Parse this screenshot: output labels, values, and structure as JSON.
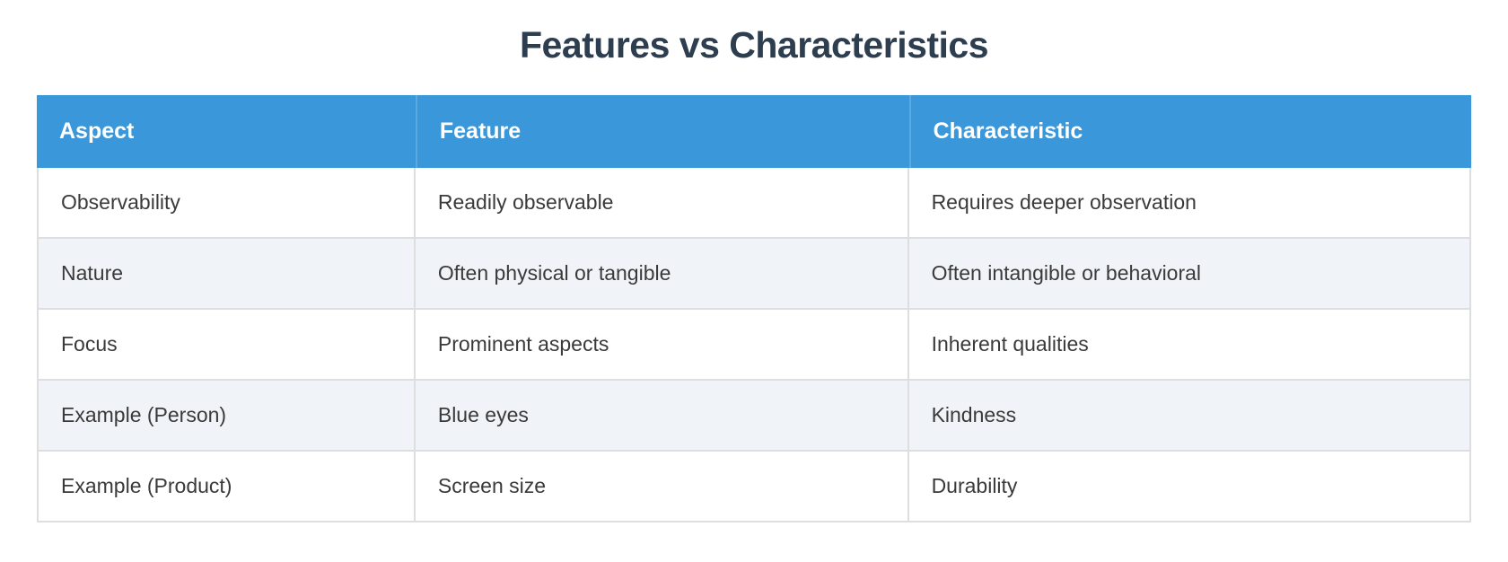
{
  "page": {
    "title": "Features vs Characteristics"
  },
  "table": {
    "headers": [
      "Aspect",
      "Feature",
      "Characteristic"
    ],
    "rows": [
      {
        "cells": [
          "Observability",
          "Readily observable",
          "Requires deeper observation"
        ]
      },
      {
        "cells": [
          "Nature",
          "Often physical or tangible",
          "Often intangible or behavioral"
        ]
      },
      {
        "cells": [
          "Focus",
          "Prominent aspects",
          "Inherent qualities"
        ]
      },
      {
        "cells": [
          "Example (Person)",
          "Blue eyes",
          "Kindness"
        ]
      },
      {
        "cells": [
          "Example (Product)",
          "Screen size",
          "Durability"
        ]
      }
    ]
  },
  "chart_data": {
    "type": "table",
    "title": "Features vs Characteristics",
    "columns": [
      "Aspect",
      "Feature",
      "Characteristic"
    ],
    "rows": [
      [
        "Observability",
        "Readily observable",
        "Requires deeper observation"
      ],
      [
        "Nature",
        "Often physical or tangible",
        "Often intangible or behavioral"
      ],
      [
        "Focus",
        "Prominent aspects",
        "Inherent qualities"
      ],
      [
        "Example (Person)",
        "Blue eyes",
        "Kindness"
      ],
      [
        "Example (Product)",
        "Screen size",
        "Durability"
      ]
    ],
    "layout_hints": {
      "header_fill": "#3997da",
      "zebra_striping": true,
      "stripe_fill": "#f0f4f8",
      "grid": true
    }
  },
  "colors": {
    "page_bg": "#ffffff",
    "header_bg": "#3997da",
    "header_text": "#ffffff",
    "stripe_bg": "#f0f4f8",
    "row_bg": "#ffffff",
    "border": "#dedede",
    "title_text": "#2d3e50",
    "body_text": "#3a3a3a"
  }
}
